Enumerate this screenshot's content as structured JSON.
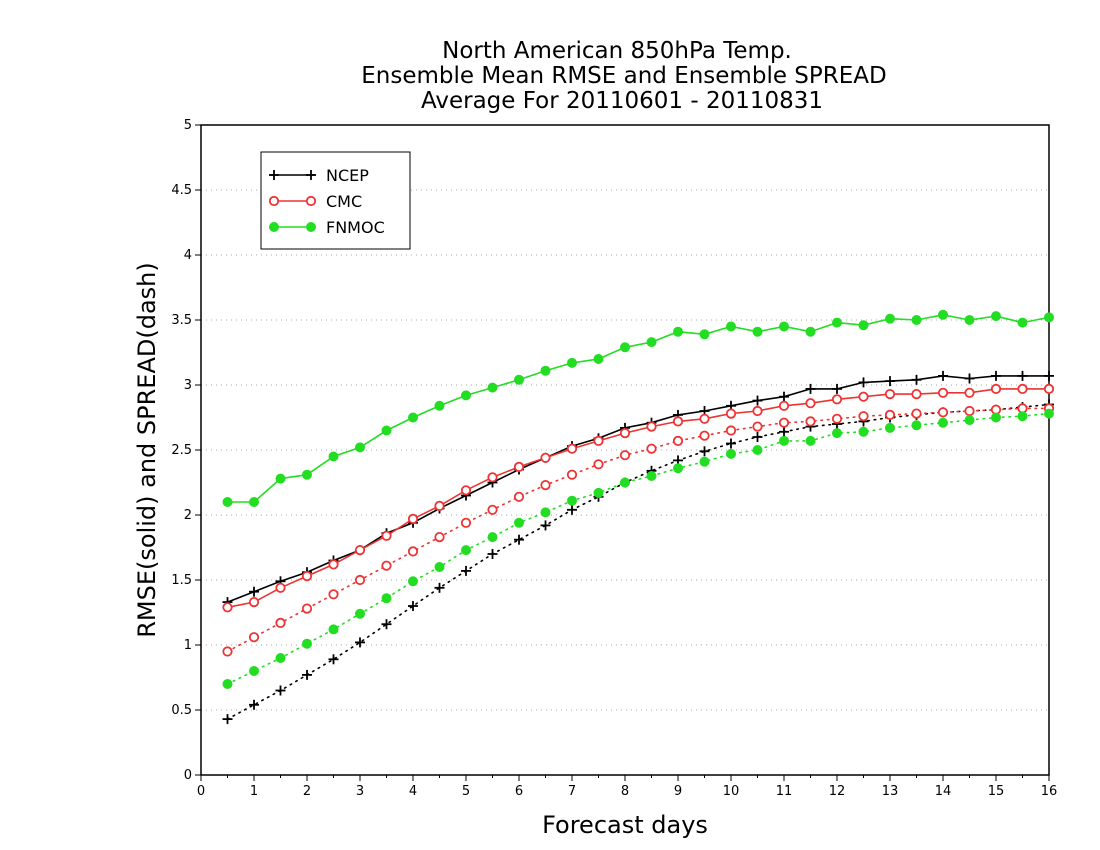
{
  "chart_data": {
    "type": "line",
    "title_lines": [
      "North American 850hPa Temp.",
      "Ensemble Mean RMSE and Ensemble SPREAD",
      "Average For 20110601 - 20110831"
    ],
    "xlabel": "Forecast days",
    "ylabel": "RMSE(solid) and SPREAD(dash)",
    "xlim": [
      0,
      16
    ],
    "ylim": [
      0,
      5
    ],
    "xticks": [
      "0",
      "1",
      "2",
      "3",
      "4",
      "5",
      "6",
      "7",
      "8",
      "9",
      "10",
      "11",
      "12",
      "13",
      "14",
      "15",
      "16"
    ],
    "yticks": [
      "0",
      "0.5",
      "1",
      "1.5",
      "2",
      "2.5",
      "3",
      "3.5",
      "4",
      "4.5",
      "5"
    ],
    "grid": "horizontal dotted",
    "legend_position": "top-left",
    "x": [
      0.5,
      1,
      1.5,
      2,
      2.5,
      3,
      3.5,
      4,
      4.5,
      5,
      5.5,
      6,
      6.5,
      7,
      7.5,
      8,
      8.5,
      9,
      9.5,
      10,
      10.5,
      11,
      11.5,
      12,
      12.5,
      13,
      13.5,
      14,
      14.5,
      15,
      15.5,
      16
    ],
    "series": [
      {
        "name": "NCEP",
        "color": "#000000",
        "marker": "plus",
        "rmse": [
          1.33,
          1.41,
          1.49,
          1.56,
          1.65,
          1.73,
          1.86,
          1.94,
          2.05,
          2.15,
          2.25,
          2.35,
          2.44,
          2.53,
          2.59,
          2.67,
          2.71,
          2.77,
          2.8,
          2.84,
          2.88,
          2.91,
          2.97,
          2.97,
          3.02,
          3.03,
          3.04,
          3.07,
          3.05,
          3.07,
          3.07,
          3.07
        ],
        "spread": [
          0.43,
          0.54,
          0.65,
          0.77,
          0.89,
          1.02,
          1.16,
          1.3,
          1.44,
          1.57,
          1.7,
          1.81,
          1.92,
          2.04,
          2.14,
          2.25,
          2.34,
          2.42,
          2.49,
          2.55,
          2.6,
          2.64,
          2.68,
          2.7,
          2.72,
          2.75,
          2.77,
          2.79,
          2.8,
          2.81,
          2.83,
          2.85
        ]
      },
      {
        "name": "CMC",
        "color": "#ee3333",
        "marker": "open-circle",
        "rmse": [
          1.29,
          1.33,
          1.44,
          1.53,
          1.62,
          1.73,
          1.84,
          1.97,
          2.07,
          2.19,
          2.29,
          2.37,
          2.44,
          2.51,
          2.57,
          2.63,
          2.68,
          2.72,
          2.74,
          2.78,
          2.8,
          2.84,
          2.86,
          2.89,
          2.91,
          2.93,
          2.93,
          2.94,
          2.94,
          2.97,
          2.97,
          2.97
        ],
        "spread": [
          0.95,
          1.06,
          1.17,
          1.28,
          1.39,
          1.5,
          1.61,
          1.72,
          1.83,
          1.94,
          2.04,
          2.14,
          2.23,
          2.31,
          2.39,
          2.46,
          2.51,
          2.57,
          2.61,
          2.65,
          2.68,
          2.71,
          2.72,
          2.74,
          2.76,
          2.77,
          2.78,
          2.79,
          2.8,
          2.81,
          2.82,
          2.82
        ]
      },
      {
        "name": "FNMOC",
        "color": "#22dd22",
        "marker": "filled-circle",
        "rmse": [
          2.1,
          2.1,
          2.28,
          2.31,
          2.45,
          2.52,
          2.65,
          2.75,
          2.84,
          2.92,
          2.98,
          3.04,
          3.11,
          3.17,
          3.2,
          3.29,
          3.33,
          3.41,
          3.39,
          3.45,
          3.41,
          3.45,
          3.41,
          3.48,
          3.46,
          3.51,
          3.5,
          3.54,
          3.5,
          3.53,
          3.48,
          3.52
        ],
        "spread": [
          0.7,
          0.8,
          0.9,
          1.01,
          1.12,
          1.24,
          1.36,
          1.49,
          1.6,
          1.73,
          1.83,
          1.94,
          2.02,
          2.11,
          2.17,
          2.25,
          2.3,
          2.36,
          2.41,
          2.47,
          2.5,
          2.57,
          2.57,
          2.63,
          2.64,
          2.67,
          2.69,
          2.71,
          2.73,
          2.75,
          2.76,
          2.78
        ]
      }
    ]
  }
}
